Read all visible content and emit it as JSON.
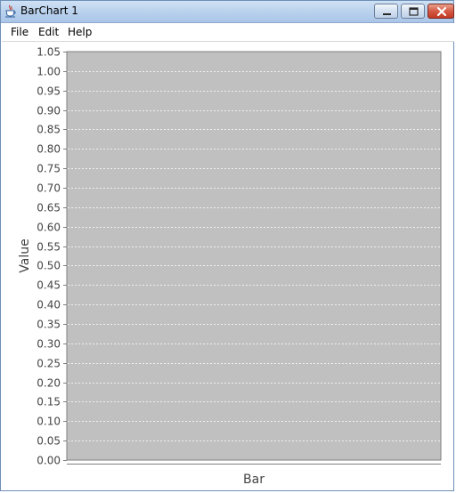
{
  "window": {
    "title": "BarChart 1",
    "icon": "java-cup-icon",
    "controls": [
      "minimize-icon",
      "maximize-icon",
      "close-icon"
    ]
  },
  "menubar": {
    "items": [
      {
        "label": "File"
      },
      {
        "label": "Edit"
      },
      {
        "label": "Help"
      }
    ]
  },
  "chart_data": {
    "type": "bar",
    "title": "",
    "xlabel": "Bar",
    "ylabel": "Value",
    "categories": [],
    "series": [],
    "ylim": [
      0,
      1.05
    ],
    "ytick_step": 0.05,
    "grid": true,
    "legend": "none",
    "colors": {
      "plot_background": "#c0c0c0",
      "gridline": "#ffffff",
      "axis_line": "#7f7f7f",
      "text": "#444444"
    }
  }
}
